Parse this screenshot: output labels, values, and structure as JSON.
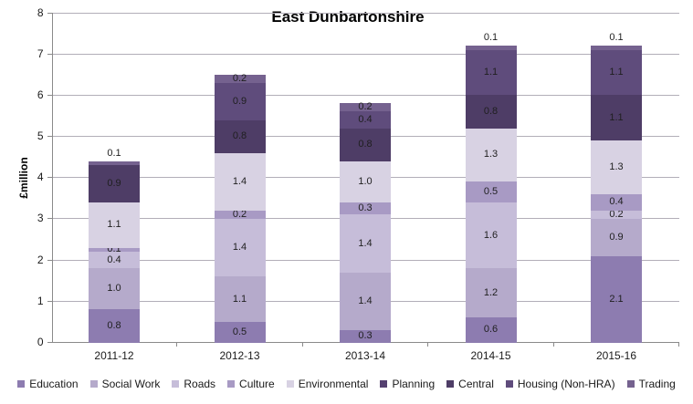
{
  "chart_data": {
    "type": "bar",
    "stacked": true,
    "title": "East Dunbartonshire",
    "xlabel": "",
    "ylabel": "£million",
    "ylim": [
      0,
      8
    ],
    "y_ticks": [
      0,
      1,
      2,
      3,
      4,
      5,
      6,
      7,
      8
    ],
    "grid": true,
    "legend_position": "bottom",
    "categories": [
      "2011-12",
      "2012-13",
      "2013-14",
      "2014-15",
      "2015-16"
    ],
    "series": [
      {
        "name": "Education",
        "color": "#8d7cb0",
        "values": [
          0.8,
          0.5,
          0.3,
          0.6,
          2.1
        ]
      },
      {
        "name": "Social Work",
        "color": "#b5aacb",
        "values": [
          1.0,
          1.1,
          1.4,
          1.2,
          0.9
        ]
      },
      {
        "name": "Roads",
        "color": "#c6bdd9",
        "values": [
          0.4,
          1.4,
          1.4,
          1.6,
          0.2
        ]
      },
      {
        "name": "Culture",
        "color": "#a89ac4",
        "values": [
          0.1,
          0.2,
          0.3,
          0.5,
          0.4
        ]
      },
      {
        "name": "Environmental",
        "color": "#d8d2e3",
        "values": [
          1.1,
          1.4,
          1.0,
          1.3,
          1.3
        ]
      },
      {
        "name": "Planning",
        "color": "#554070",
        "values": [
          0,
          0,
          0,
          0,
          0
        ]
      },
      {
        "name": "Central",
        "color": "#4e3d66",
        "values": [
          0.9,
          0.8,
          0.8,
          0.8,
          1.1
        ]
      },
      {
        "name": "Housing (Non-HRA)",
        "color": "#5f4c7c",
        "values": [
          0,
          0.9,
          0.4,
          1.1,
          1.1
        ]
      },
      {
        "name": "Trading",
        "color": "#75628f",
        "values": [
          0.1,
          0.2,
          0.2,
          0.1,
          0.1
        ]
      }
    ]
  }
}
